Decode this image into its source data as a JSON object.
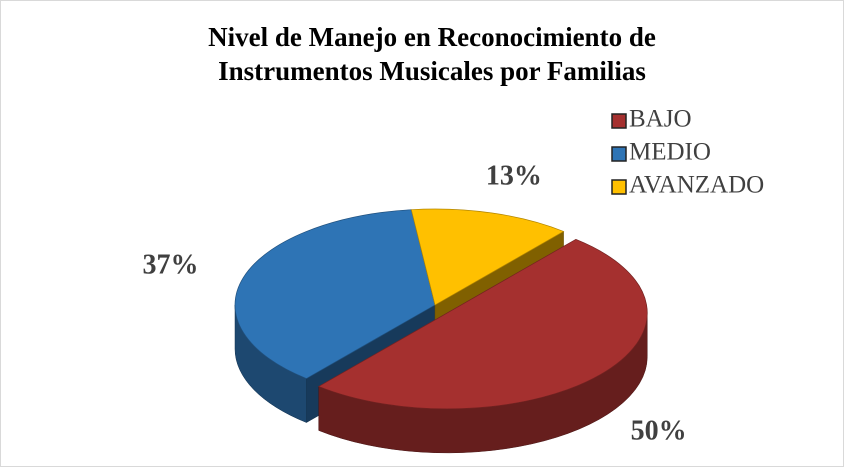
{
  "chart_data": {
    "type": "pie",
    "title": [
      "Nivel de Manejo en Reconocimiento de",
      "Instrumentos Musicales por Familias"
    ],
    "categories": [
      "BAJO",
      "MEDIO",
      "AVANZADO"
    ],
    "values": [
      50,
      37,
      13
    ],
    "value_labels": [
      "50%",
      "37%",
      "13%"
    ],
    "colors": [
      "#a5302f",
      "#2e74b5",
      "#ffc000"
    ],
    "exploded": [
      true,
      false,
      false
    ],
    "legend": "top-right"
  }
}
